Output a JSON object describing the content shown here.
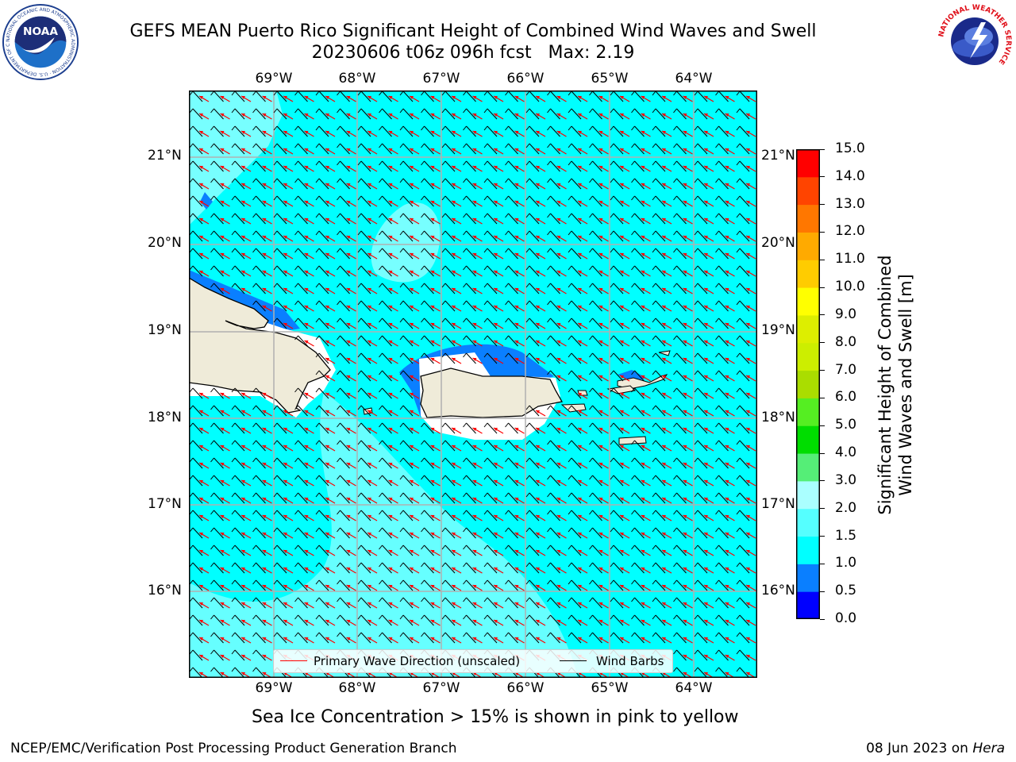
{
  "header": {
    "title_line1": "GEFS MEAN Puerto Rico Significant Height of Combined Wind Waves and Swell",
    "title_line2": "20230606 t06z 096h fcst   Max: 2.19"
  },
  "logos": {
    "noaa_text": "NOAA",
    "noaa_ring": "NATIONAL OCEANIC AND ATMOSPHERIC ADMINISTRATION · U.S. DEPARTMENT OF COMMERCE",
    "nws_ring": "NATIONAL WEATHER SERVICE"
  },
  "map": {
    "lon_labels": [
      "69°W",
      "68°W",
      "67°W",
      "66°W",
      "65°W",
      "64°W"
    ],
    "lat_labels": [
      "21°N",
      "20°N",
      "19°N",
      "18°N",
      "17°N",
      "16°N"
    ],
    "lon_extent": [
      -70.0,
      -63.25
    ],
    "lat_extent": [
      15.0,
      21.75
    ],
    "ocean_color": "#00ffff",
    "land_color": "#efebd9",
    "light_wave_color": "#aaffff",
    "blue_wave_color": "#0a7fff",
    "arrow_color": "#ff0000",
    "barb_color": "#000000"
  },
  "legend": {
    "wave_direction": "Primary Wave Direction (unscaled)",
    "wind_barbs": "Wind Barbs"
  },
  "colorbar": {
    "label_line1": "Significant Height of Combined",
    "label_line2": "Wind Waves and Swell [m]",
    "ticks": [
      "0.0",
      "0.5",
      "1.0",
      "1.5",
      "2.0",
      "3.0",
      "4.0",
      "5.0",
      "6.0",
      "7.0",
      "8.0",
      "9.0",
      "10.0",
      "11.0",
      "12.0",
      "13.0",
      "14.0",
      "15.0"
    ],
    "colors": [
      "#0000ff",
      "#0a7fff",
      "#00ffff",
      "#55ffff",
      "#aaffff",
      "#55ee77",
      "#00dd00",
      "#55ee22",
      "#aadd00",
      "#ccee00",
      "#ddee00",
      "#ffff00",
      "#ffcc00",
      "#ffaa00",
      "#ff7700",
      "#ff4400",
      "#ff0000"
    ]
  },
  "notes": {
    "sea_ice": "Sea Ice Concentration > 15% is shown in pink to yellow"
  },
  "footer": {
    "left": "NCEP/EMC/Verification Post Processing Product Generation Branch",
    "right_date": "08 Jun 2023 on",
    "right_host": "Hera"
  }
}
